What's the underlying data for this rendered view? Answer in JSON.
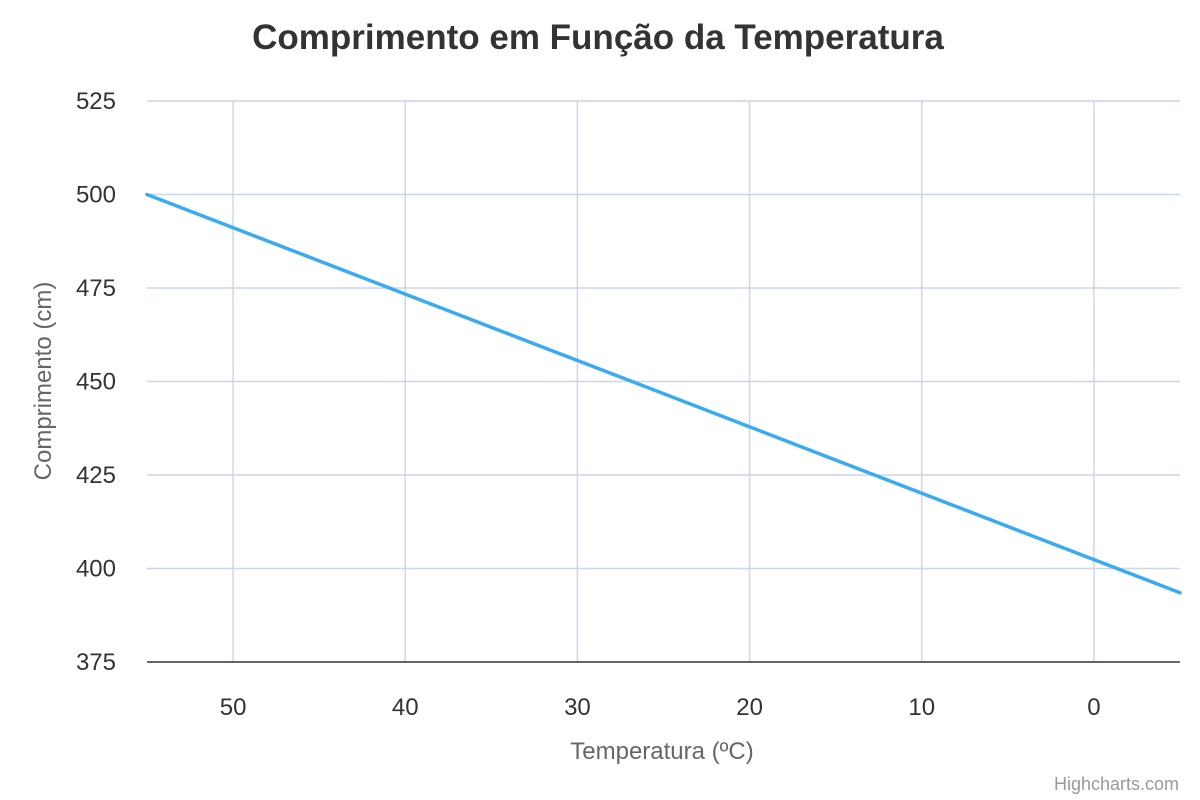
{
  "credits": "Highcharts.com",
  "colors": {
    "series": "#3aabf0",
    "grid": "#ccd6eb",
    "axis": "#333333"
  },
  "chart_data": {
    "type": "line",
    "title": "Comprimento em Função da Temperatura",
    "xlabel": "Temperatura (ºC)",
    "ylabel": "Comprimento (cm)",
    "x_reversed": true,
    "xlim": [
      55,
      -5
    ],
    "ylim": [
      375,
      525
    ],
    "x_ticks": [
      50,
      40,
      30,
      20,
      10,
      0
    ],
    "y_ticks": [
      375,
      400,
      425,
      450,
      475,
      500,
      525
    ],
    "grid": true,
    "legend": "none",
    "series": [
      {
        "x": [
          55,
          -5
        ],
        "y": [
          500,
          393.5
        ]
      }
    ]
  }
}
